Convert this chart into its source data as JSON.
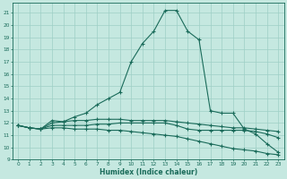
{
  "title": "",
  "xlabel": "Humidex (Indice chaleur)",
  "bg_color": "#c5e8e0",
  "line_color": "#1a6b5a",
  "grid_color": "#9ecfc5",
  "xlim": [
    -0.5,
    23.5
  ],
  "ylim": [
    9,
    21.8
  ],
  "xticks": [
    0,
    1,
    2,
    3,
    4,
    5,
    6,
    7,
    8,
    9,
    10,
    11,
    12,
    13,
    14,
    15,
    16,
    17,
    18,
    19,
    20,
    21,
    22,
    23
  ],
  "yticks": [
    9,
    10,
    11,
    12,
    13,
    14,
    15,
    16,
    17,
    18,
    19,
    20,
    21
  ],
  "series": [
    {
      "x": [
        0,
        1,
        2,
        3,
        4,
        5,
        6,
        7,
        8,
        9,
        10,
        11,
        12,
        13,
        14,
        15,
        16,
        17,
        18,
        19,
        20,
        21,
        22,
        23
      ],
      "y": [
        11.8,
        11.6,
        11.5,
        12.2,
        12.1,
        12.5,
        12.8,
        13.5,
        14.0,
        14.5,
        17.0,
        18.5,
        19.5,
        21.2,
        21.2,
        19.5,
        18.8,
        13.0,
        12.8,
        12.8,
        11.5,
        11.1,
        10.3,
        9.6
      ]
    },
    {
      "x": [
        0,
        1,
        2,
        3,
        4,
        5,
        6,
        7,
        8,
        9,
        10,
        11,
        12,
        13,
        14,
        15,
        16,
        17,
        18,
        19,
        20,
        21,
        22,
        23
      ],
      "y": [
        11.8,
        11.6,
        11.5,
        12.0,
        12.1,
        12.2,
        12.2,
        12.3,
        12.3,
        12.3,
        12.2,
        12.2,
        12.2,
        12.2,
        12.1,
        12.0,
        11.9,
        11.8,
        11.7,
        11.6,
        11.6,
        11.5,
        11.4,
        11.3
      ]
    },
    {
      "x": [
        0,
        1,
        2,
        3,
        4,
        5,
        6,
        7,
        8,
        9,
        10,
        11,
        12,
        13,
        14,
        15,
        16,
        17,
        18,
        19,
        20,
        21,
        22,
        23
      ],
      "y": [
        11.8,
        11.6,
        11.5,
        11.8,
        11.8,
        11.8,
        11.8,
        11.9,
        11.9,
        12.0,
        12.0,
        12.0,
        12.0,
        12.0,
        11.8,
        11.5,
        11.4,
        11.4,
        11.4,
        11.4,
        11.4,
        11.3,
        11.1,
        10.8
      ]
    },
    {
      "x": [
        0,
        1,
        2,
        3,
        4,
        5,
        6,
        7,
        8,
        9,
        10,
        11,
        12,
        13,
        14,
        15,
        16,
        17,
        18,
        19,
        20,
        21,
        22,
        23
      ],
      "y": [
        11.8,
        11.6,
        11.5,
        11.6,
        11.6,
        11.5,
        11.5,
        11.5,
        11.4,
        11.4,
        11.3,
        11.2,
        11.1,
        11.0,
        10.9,
        10.7,
        10.5,
        10.3,
        10.1,
        9.9,
        9.8,
        9.7,
        9.5,
        9.4
      ]
    }
  ]
}
